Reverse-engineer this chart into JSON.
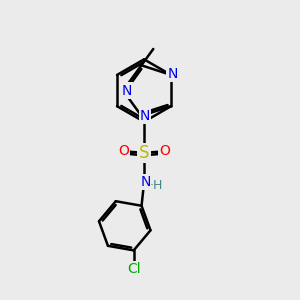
{
  "bg_color": "#ebebeb",
  "bond_color": "#000000",
  "bond_width": 1.8,
  "dbo": 0.06,
  "atom_colors": {
    "N": "#0000ee",
    "S": "#bbbb00",
    "O": "#ff0000",
    "Cl": "#00aa00",
    "C": "#000000",
    "H": "#448888"
  },
  "fs": 10
}
